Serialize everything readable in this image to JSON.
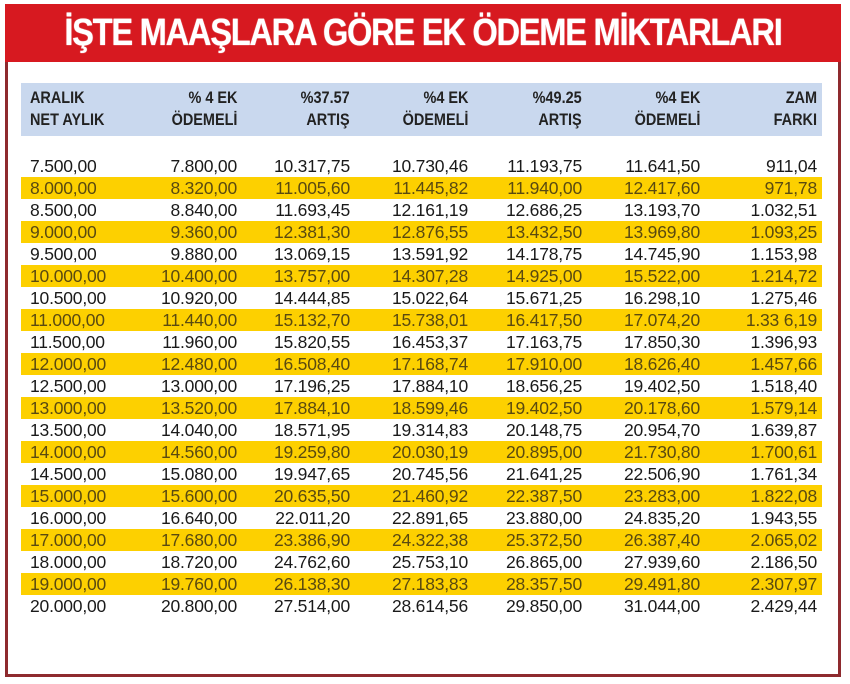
{
  "title": "İŞTE MAAŞLARA GÖRE EK ÖDEME MİKTARLARI",
  "colors": {
    "title_bg": "#d71920",
    "title_text": "#ffffff",
    "frame_border": "#8e2a2e",
    "header_band": "#c9d8ee",
    "alt_row": "#fdd000"
  },
  "columns": [
    {
      "line1": "ARALIK",
      "line2": "NET AYLIK"
    },
    {
      "line1": "% 4 EK",
      "line2": "ÖDEMELİ"
    },
    {
      "line1": "%37.57",
      "line2": "ARTIŞ"
    },
    {
      "line1": "%4 EK",
      "line2": "ÖDEMELİ"
    },
    {
      "line1": "%49.25",
      "line2": "ARTIŞ"
    },
    {
      "line1": "%4 EK",
      "line2": "ÖDEMELİ"
    },
    {
      "line1": "ZAM",
      "line2": "FARKI"
    }
  ],
  "rows": [
    [
      "7.500,00",
      "7.800,00",
      "10.317,75",
      "10.730,46",
      "11.193,75",
      "11.641,50",
      "911,04"
    ],
    [
      "8.000,00",
      "8.320,00",
      "11.005,60",
      "11.445,82",
      "11.940,00",
      "12.417,60",
      "971,78"
    ],
    [
      "8.500,00",
      "8.840,00",
      "11.693,45",
      "12.161,19",
      "12.686,25",
      "13.193,70",
      "1.032,51"
    ],
    [
      "9.000,00",
      "9.360,00",
      "12.381,30",
      "12.876,55",
      "13.432,50",
      "13.969,80",
      "1.093,25"
    ],
    [
      "9.500,00",
      "9.880,00",
      "13.069,15",
      "13.591,92",
      "14.178,75",
      "14.745,90",
      "1.153,98"
    ],
    [
      "10.000,00",
      "10.400,00",
      "13.757,00",
      "14.307,28",
      "14.925,00",
      "15.522,00",
      "1.214,72"
    ],
    [
      "10.500,00",
      "10.920,00",
      "14.444,85",
      "15.022,64",
      "15.671,25",
      "16.298,10",
      "1.275,46"
    ],
    [
      "11.000,00",
      "11.440,00",
      "15.132,70",
      "15.738,01",
      "16.417,50",
      "17.074,20",
      "1.33 6,19"
    ],
    [
      "11.500,00",
      "11.960,00",
      "15.820,55",
      "16.453,37",
      "17.163,75",
      "17.850,30",
      "1.396,93"
    ],
    [
      "12.000,00",
      "12.480,00",
      "16.508,40",
      "17.168,74",
      "17.910,00",
      "18.626,40",
      "1.457,66"
    ],
    [
      "12.500,00",
      "13.000,00",
      "17.196,25",
      "17.884,10",
      "18.656,25",
      "19.402,50",
      "1.518,40"
    ],
    [
      "13.000,00",
      "13.520,00",
      "17.884,10",
      "18.599,46",
      "19.402,50",
      "20.178,60",
      "1.579,14"
    ],
    [
      "13.500,00",
      "14.040,00",
      "18.571,95",
      "19.314,83",
      "20.148,75",
      "20.954,70",
      "1.639,87"
    ],
    [
      "14.000,00",
      "14.560,00",
      "19.259,80",
      "20.030,19",
      "20.895,00",
      "21.730,80",
      "1.700,61"
    ],
    [
      "14.500,00",
      "15.080,00",
      "19.947,65",
      "20.745,56",
      "21.641,25",
      "22.506,90",
      "1.761,34"
    ],
    [
      "15.000,00",
      "15.600,00",
      "20.635,50",
      "21.460,92",
      "22.387,50",
      "23.283,00",
      "1.822,08"
    ],
    [
      "16.000,00",
      "16.640,00",
      "22.011,20",
      "22.891,65",
      "23.880,00",
      "24.835,20",
      "1.943,55"
    ],
    [
      "17.000,00",
      "17.680,00",
      "23.386,90",
      "24.322,38",
      "25.372,50",
      "26.387,40",
      "2.065,02"
    ],
    [
      "18.000,00",
      "18.720,00",
      "24.762,60",
      "25.753,10",
      "26.865,00",
      "27.939,60",
      "2.186,50"
    ],
    [
      "19.000,00",
      "19.760,00",
      "26.138,30",
      "27.183,83",
      "28.357,50",
      "29.491,80",
      "2.307,97"
    ],
    [
      "20.000,00",
      "20.800,00",
      "27.514,00",
      "28.614,56",
      "29.850,00",
      "31.044,00",
      "2.429,44"
    ]
  ]
}
